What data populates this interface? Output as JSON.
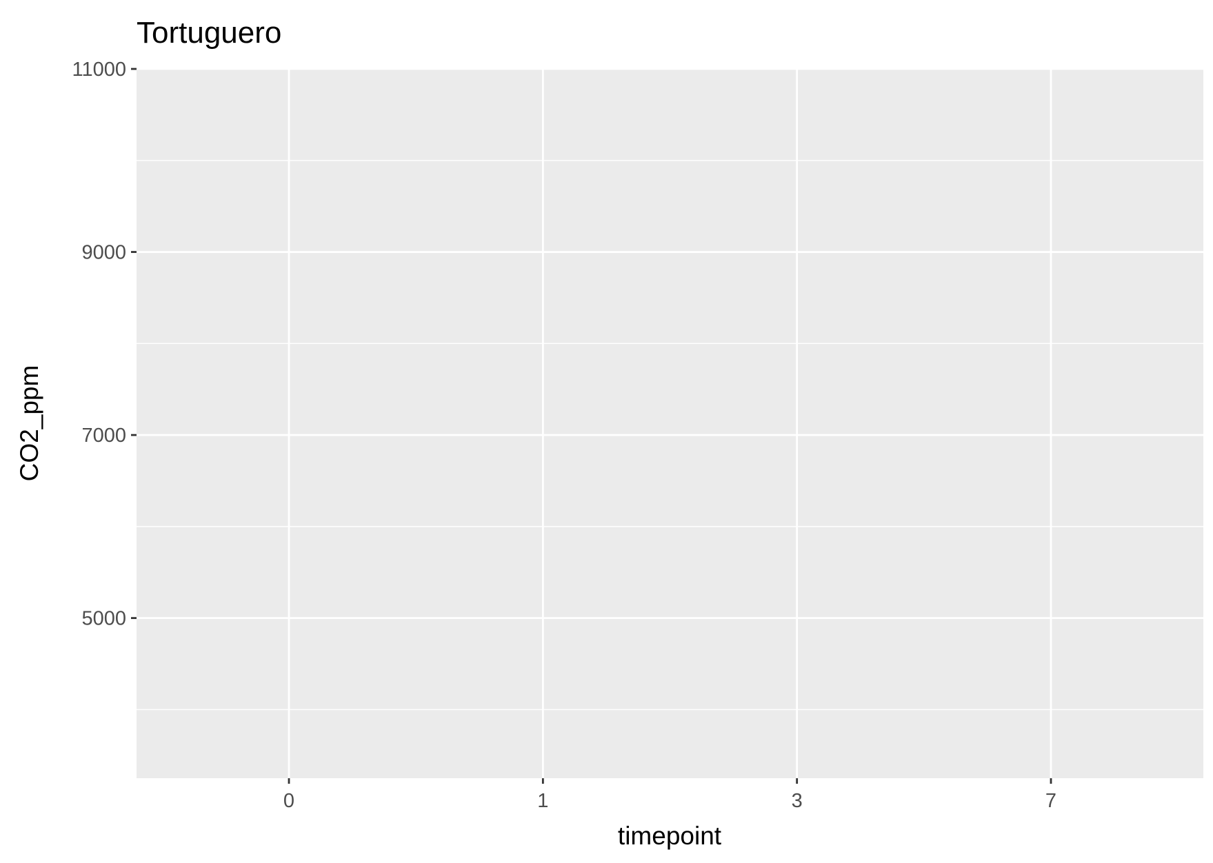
{
  "chart_data": {
    "type": "scatter",
    "title": "Tortuguero",
    "xlabel": "timepoint",
    "ylabel": "CO2_ppm",
    "x_axis_kind": "discrete",
    "categories": [
      "0",
      "1",
      "3",
      "7"
    ],
    "y_major_ticks": [
      5000,
      7000,
      9000,
      11000
    ],
    "ylim": [
      3250,
      11000
    ],
    "grid": true,
    "panel_background": "#ebebeb",
    "grid_color": "#ffffff",
    "tick_color": "#333333",
    "series": []
  }
}
